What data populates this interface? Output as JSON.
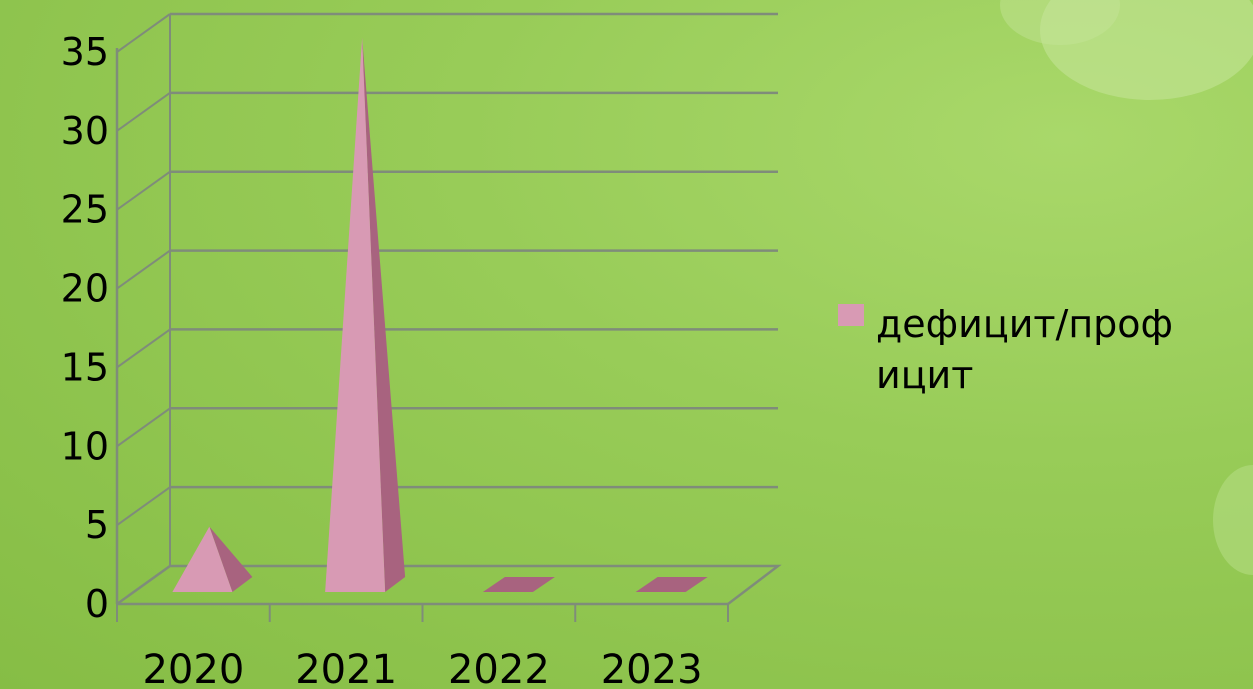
{
  "chart_data": {
    "type": "bar",
    "shape": "pyramid-3d",
    "categories": [
      "2020",
      "2021",
      "2022",
      "2023"
    ],
    "series": [
      {
        "name": "дефицит/профицит",
        "values": [
          3,
          34,
          0,
          0
        ]
      }
    ],
    "ylim": [
      0,
      35
    ],
    "yticks": [
      "0",
      "5",
      "10",
      "15",
      "20",
      "25",
      "30",
      "35"
    ],
    "grid": true,
    "legend_position": "right",
    "legend_lines": [
      "дефицит/проф",
      "ицит"
    ],
    "colors": {
      "bar_front": "#d89ab4",
      "bar_side": "#a8637f",
      "grid": "#7f8c7a",
      "background": "#98cc58"
    }
  }
}
